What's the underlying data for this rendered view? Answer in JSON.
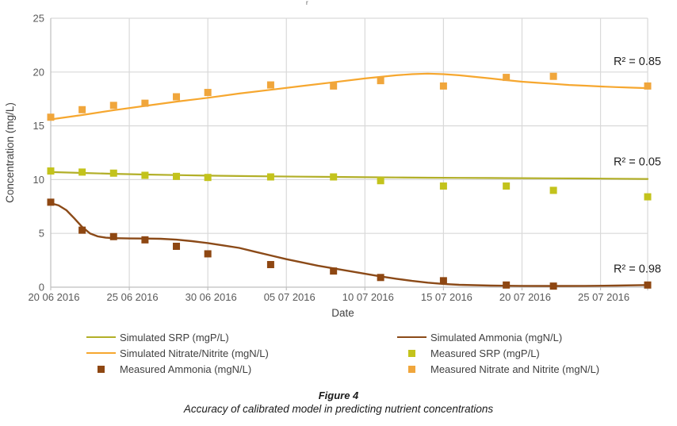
{
  "figure": {
    "title_fragment": "r",
    "caption_title": "Figure 4",
    "caption_subtitle": "Accuracy of calibrated model in predicting nutrient concentrations"
  },
  "colors": {
    "grid": "#D9D9D9",
    "axis": "#BFBFBF",
    "tick_text": "#595959",
    "axis_title_text": "#404040",
    "legend_text": "#3F3F3F",
    "annotation_text": "#1F1F1F"
  },
  "chart_data": {
    "type": "line",
    "title": "",
    "xlabel": "Date",
    "ylabel": "Concentration (mg/L)",
    "ylim": [
      0,
      25
    ],
    "y_ticks": [
      0,
      5,
      10,
      15,
      20,
      25
    ],
    "grid": true,
    "x_axis_days_range": [
      0,
      38
    ],
    "x_ticks": [
      {
        "day": 0,
        "label": "20 06 2016"
      },
      {
        "day": 5,
        "label": "25 06 2016"
      },
      {
        "day": 10,
        "label": "30 06 2016"
      },
      {
        "day": 15,
        "label": "05 07 2016"
      },
      {
        "day": 20,
        "label": "10 07 2016"
      },
      {
        "day": 25,
        "label": "15 07 2016"
      },
      {
        "day": 30,
        "label": "20 07 2016"
      },
      {
        "day": 35,
        "label": "25 07 2016"
      }
    ],
    "annotations": [
      {
        "text": "R² = 0.85",
        "series": "sim_nitrate",
        "value_y": 21.0
      },
      {
        "text": "R² = 0.05",
        "series": "sim_srp",
        "value_y": 11.7
      },
      {
        "text": "R² = 0.98",
        "series": "sim_ammonia",
        "value_y": 1.75
      }
    ],
    "series": [
      {
        "id": "sim_srp",
        "name": "Simulated SRP (mgP/L)",
        "kind": "line",
        "color": "#B2AF28",
        "width": 2.2,
        "days": [
          0,
          2,
          4,
          6,
          8,
          10,
          12,
          14,
          16,
          18,
          20,
          22,
          24,
          26,
          28,
          30,
          32,
          34,
          36,
          38
        ],
        "values": [
          10.7,
          10.62,
          10.54,
          10.47,
          10.42,
          10.37,
          10.33,
          10.3,
          10.27,
          10.25,
          10.22,
          10.2,
          10.18,
          10.16,
          10.15,
          10.13,
          10.12,
          10.1,
          10.08,
          10.06
        ]
      },
      {
        "id": "sim_nitrate",
        "name": "Simulated Nitrate/Nitrite (mgN/L)",
        "kind": "line",
        "color": "#F6A72F",
        "width": 2.2,
        "days": [
          0,
          2,
          4,
          6,
          8,
          10,
          12,
          14,
          16,
          18,
          20,
          21,
          22,
          23,
          24,
          25,
          26,
          27,
          28,
          29,
          30,
          31,
          32,
          33,
          34,
          35,
          36,
          37,
          38
        ],
        "values": [
          15.6,
          16.0,
          16.45,
          16.85,
          17.25,
          17.6,
          18.0,
          18.35,
          18.7,
          19.05,
          19.4,
          19.55,
          19.7,
          19.8,
          19.85,
          19.8,
          19.7,
          19.55,
          19.4,
          19.25,
          19.1,
          19.0,
          18.9,
          18.8,
          18.73,
          18.66,
          18.6,
          18.55,
          18.5
        ]
      },
      {
        "id": "sim_ammonia",
        "name": "Simulated Ammonia (mgN/L)",
        "kind": "line",
        "color": "#8B4A18",
        "width": 2.4,
        "days": [
          0,
          0.5,
          1,
          1.5,
          2,
          2.5,
          3,
          3.5,
          4,
          5,
          6,
          7,
          8,
          9,
          10,
          11,
          12,
          13,
          14,
          15,
          16,
          17,
          18,
          19,
          20,
          21,
          22,
          23,
          24,
          25,
          26,
          28,
          30,
          32,
          34,
          36,
          38
        ],
        "values": [
          7.8,
          7.6,
          7.15,
          6.4,
          5.6,
          5.0,
          4.72,
          4.6,
          4.56,
          4.53,
          4.52,
          4.5,
          4.42,
          4.28,
          4.1,
          3.88,
          3.65,
          3.3,
          2.95,
          2.6,
          2.3,
          2.0,
          1.75,
          1.5,
          1.25,
          1.0,
          0.78,
          0.58,
          0.42,
          0.3,
          0.22,
          0.15,
          0.12,
          0.11,
          0.12,
          0.15,
          0.2
        ]
      },
      {
        "id": "meas_ammonia",
        "name": "Measured Ammonia (mgN/L)",
        "kind": "scatter",
        "color": "#8E4712",
        "days": [
          0,
          2,
          4,
          6,
          8,
          10,
          14,
          18,
          21,
          25,
          29,
          32,
          38
        ],
        "values": [
          7.9,
          5.3,
          4.7,
          4.4,
          3.8,
          3.1,
          2.1,
          1.5,
          0.9,
          0.6,
          0.2,
          0.1,
          0.2
        ]
      },
      {
        "id": "meas_srp",
        "name": "Measured SRP (mgP/L)",
        "kind": "scatter",
        "color": "#C3C31C",
        "days": [
          0,
          2,
          4,
          6,
          8,
          10,
          14,
          18,
          21,
          25,
          29,
          32,
          38
        ],
        "values": [
          10.8,
          10.7,
          10.6,
          10.4,
          10.3,
          10.2,
          10.25,
          10.25,
          9.9,
          9.4,
          9.4,
          9.0,
          8.4
        ]
      },
      {
        "id": "meas_nitrate",
        "name": "Measured Nitrate and Nitrite (mgN/L)",
        "kind": "scatter",
        "color": "#F0A63C",
        "days": [
          0,
          2,
          4,
          6,
          8,
          10,
          14,
          18,
          21,
          25,
          29,
          32,
          38
        ],
        "values": [
          15.8,
          16.5,
          16.9,
          17.1,
          17.7,
          18.1,
          18.8,
          18.7,
          19.2,
          18.7,
          19.5,
          19.6,
          18.7
        ]
      }
    ]
  },
  "legend": {
    "left": [
      {
        "swatch": "line",
        "series": "sim_srp"
      },
      {
        "swatch": "line",
        "series": "sim_nitrate"
      },
      {
        "swatch": "square",
        "series": "meas_ammonia"
      }
    ],
    "right": [
      {
        "swatch": "line",
        "series": "sim_ammonia"
      },
      {
        "swatch": "square",
        "series": "meas_srp"
      },
      {
        "swatch": "square",
        "series": "meas_nitrate"
      }
    ]
  }
}
